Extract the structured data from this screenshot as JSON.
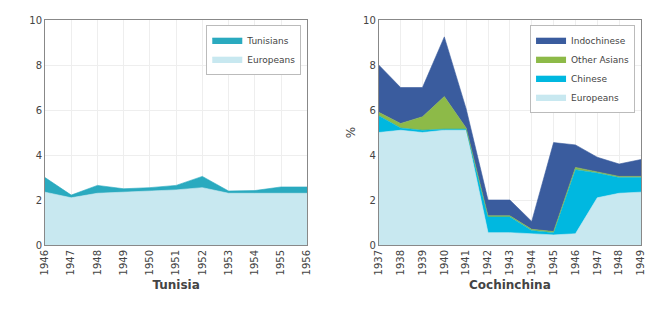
{
  "chart_data": [
    {
      "type": "area",
      "stacked": true,
      "xlabel": "Tunisia",
      "x": [
        1946,
        1947,
        1948,
        1949,
        1950,
        1951,
        1952,
        1953,
        1954,
        1955,
        1956
      ],
      "series": [
        {
          "name": "Europeans",
          "color": "#c8e8f0",
          "values": [
            2.35,
            2.1,
            2.3,
            2.35,
            2.4,
            2.45,
            2.55,
            2.3,
            2.3,
            2.3,
            2.3
          ]
        },
        {
          "name": "Tunisians",
          "color": "#2aaabf",
          "values": [
            0.65,
            0.12,
            0.35,
            0.15,
            0.15,
            0.2,
            0.5,
            0.1,
            0.12,
            0.28,
            0.28
          ]
        }
      ],
      "xlim": [
        1946,
        1956
      ],
      "xticks": [
        1946,
        1947,
        1948,
        1949,
        1950,
        1951,
        1952,
        1953,
        1954,
        1955,
        1956
      ],
      "ylim": [
        0,
        10
      ],
      "yticks": [
        0,
        2,
        4,
        6,
        8,
        10
      ],
      "grid": true,
      "legend": "upper right"
    },
    {
      "type": "area",
      "stacked": true,
      "xlabel": "Cochinchina",
      "ylabel": "%",
      "x": [
        1937,
        1938,
        1939,
        1940,
        1941,
        1942,
        1943,
        1944,
        1945,
        1946,
        1947,
        1948,
        1949
      ],
      "series": [
        {
          "name": "Europeans",
          "color": "#c8e8f0",
          "values": [
            5.0,
            5.1,
            5.0,
            5.1,
            5.1,
            0.55,
            0.55,
            0.5,
            0.45,
            0.5,
            2.1,
            2.3,
            2.35
          ]
        },
        {
          "name": "Chinese",
          "color": "#00b8e0",
          "values": [
            0.75,
            0.1,
            0.1,
            0.05,
            0.05,
            0.7,
            0.7,
            0.15,
            0.1,
            2.85,
            1.1,
            0.7,
            0.65
          ]
        },
        {
          "name": "Other Asians",
          "color": "#8dba48",
          "values": [
            0.15,
            0.2,
            0.6,
            1.45,
            0.05,
            0.05,
            0.05,
            0.05,
            0.05,
            0.1,
            0.05,
            0.05,
            0.05
          ]
        },
        {
          "name": "Indochinese",
          "color": "#3a5c9e",
          "values": [
            2.1,
            1.6,
            1.3,
            2.65,
            0.85,
            0.7,
            0.7,
            0.35,
            3.95,
            1.0,
            0.65,
            0.55,
            0.75
          ]
        }
      ],
      "xlim": [
        1937,
        1949
      ],
      "xticks": [
        1937,
        1938,
        1939,
        1940,
        1941,
        1942,
        1943,
        1944,
        1945,
        1946,
        1947,
        1948,
        1949
      ],
      "ylim": [
        0,
        10
      ],
      "yticks": [
        0,
        2,
        4,
        6,
        8,
        10
      ],
      "grid": true,
      "legend": "upper right"
    }
  ]
}
